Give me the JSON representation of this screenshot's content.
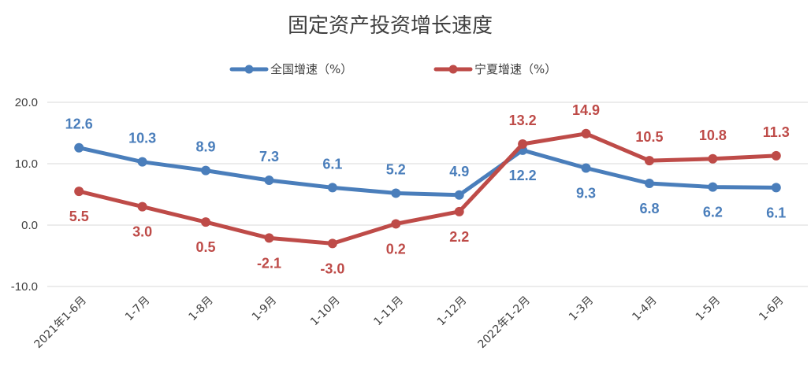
{
  "chart_data": {
    "type": "line",
    "title": "固定资产投资增长速度",
    "categories": [
      "2021年1-6月",
      "1-7月",
      "1-8月",
      "1-9月",
      "1-10月",
      "1-11月",
      "1-12月",
      "2022年1-2月",
      "1-3月",
      "1-4月",
      "1-5月",
      "1-6月"
    ],
    "series": [
      {
        "name": "全国增速（%）",
        "color": "#4a7ebb",
        "values": [
          12.6,
          10.3,
          8.9,
          7.3,
          6.1,
          5.2,
          4.9,
          12.2,
          9.3,
          6.8,
          6.2,
          6.1
        ],
        "labels": [
          "12.6",
          "10.3",
          "8.9",
          "7.3",
          "6.1",
          "5.2",
          "4.9",
          "12.2",
          "9.3",
          "6.8",
          "6.2",
          "6.1"
        ]
      },
      {
        "name": "宁夏增速（%）",
        "color": "#be4b48",
        "values": [
          5.5,
          3.0,
          0.5,
          -2.1,
          -3.0,
          0.2,
          2.2,
          13.2,
          14.9,
          10.5,
          10.8,
          11.3
        ],
        "labels": [
          "5.5",
          "3.0",
          "0.5",
          "-2.1",
          "-3.0",
          "0.2",
          "2.2",
          "13.2",
          "14.9",
          "10.5",
          "10.8",
          "11.3"
        ]
      }
    ],
    "yticks": [
      "20.0",
      "10.0",
      "0.0",
      "-10.0"
    ],
    "ylim": [
      -10,
      20
    ],
    "grid": true,
    "legend": "top-center"
  }
}
